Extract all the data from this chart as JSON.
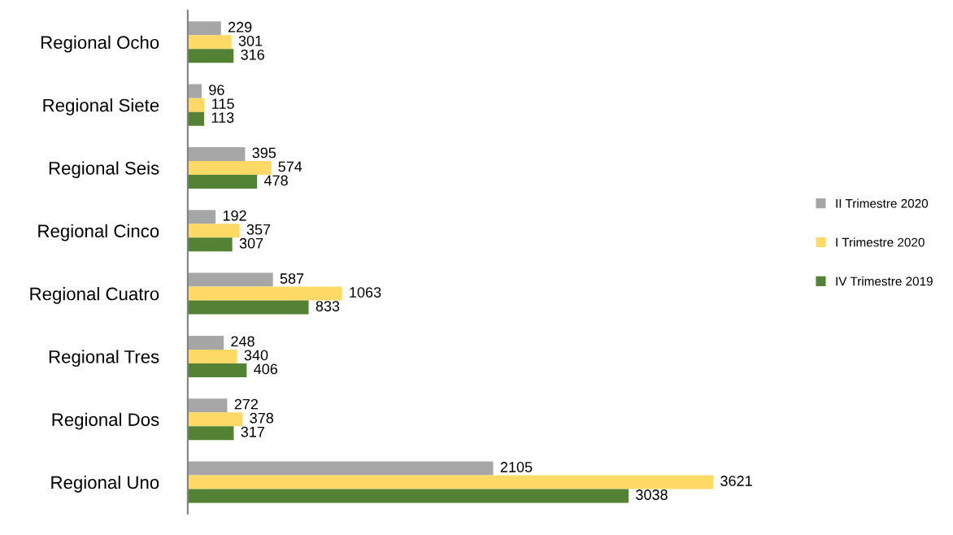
{
  "chart_data": {
    "type": "bar",
    "orientation": "horizontal",
    "data_labels": true,
    "legend": "right",
    "grid": false,
    "categories": [
      "Regional Ocho",
      "Regional Siete",
      "Regional Seis",
      "Regional Cinco",
      "Regional Cuatro",
      "Regional Tres",
      "Regional Dos",
      "Regional Uno"
    ],
    "series": [
      {
        "name": "II Trimestre 2020",
        "color": "#a6a6a6",
        "values": [
          229,
          96,
          395,
          192,
          587,
          248,
          272,
          2105
        ]
      },
      {
        "name": "I Trimestre 2020",
        "color": "#ffd966",
        "values": [
          301,
          115,
          574,
          357,
          1063,
          340,
          378,
          3621
        ]
      },
      {
        "name": "IV Trimestre 2019",
        "color": "#548235",
        "values": [
          316,
          113,
          478,
          307,
          833,
          406,
          317,
          3038
        ]
      }
    ]
  }
}
